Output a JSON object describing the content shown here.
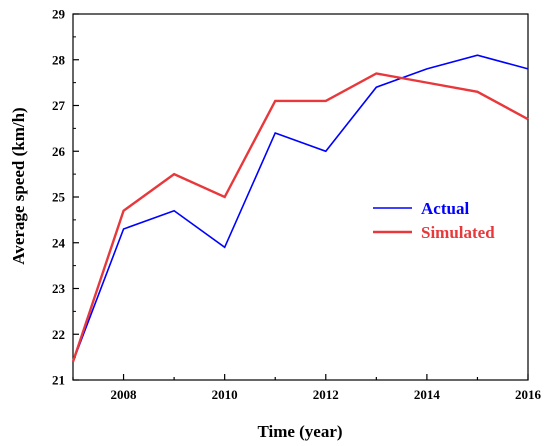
{
  "chart_data": {
    "type": "line",
    "title": "",
    "xlabel": "Time (year)",
    "ylabel": "Average speed (km/h)",
    "xlim": [
      2007,
      2016
    ],
    "ylim": [
      21,
      29
    ],
    "x_ticks": [
      2008,
      2010,
      2012,
      2014,
      2016
    ],
    "y_ticks": [
      21,
      22,
      23,
      24,
      25,
      26,
      27,
      28,
      29
    ],
    "grid": false,
    "legend_position": "center-right",
    "x": [
      2007,
      2008,
      2009,
      2010,
      2011,
      2012,
      2013,
      2014,
      2015,
      2016
    ],
    "series": [
      {
        "name": "Actual",
        "color": "#0000ff",
        "values": [
          21.4,
          24.3,
          24.7,
          23.9,
          26.4,
          26.0,
          27.4,
          27.8,
          28.1,
          27.8
        ]
      },
      {
        "name": "Simulated",
        "color": "#e8383b",
        "values": [
          21.4,
          24.7,
          25.5,
          25.0,
          27.1,
          27.1,
          27.7,
          27.5,
          27.3,
          26.7
        ]
      }
    ]
  }
}
